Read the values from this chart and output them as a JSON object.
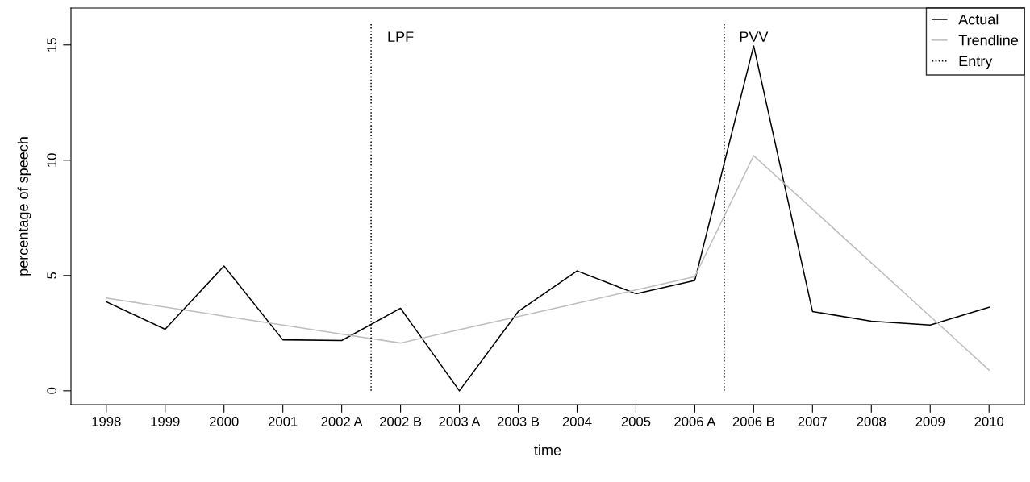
{
  "chart_data": {
    "type": "line",
    "xlabel": "time",
    "ylabel": "percentage of speech",
    "categories": [
      "1998",
      "1999",
      "2000",
      "2001",
      "2002 A",
      "2002 B",
      "2003 A",
      "2003 B",
      "2004",
      "2005",
      "2006 A",
      "2006 B",
      "2007",
      "2008",
      "2009",
      "2010"
    ],
    "series": [
      {
        "name": "Actual",
        "color": "#000000",
        "values": [
          3.86,
          2.67,
          5.41,
          2.21,
          2.18,
          3.58,
          0,
          3.44,
          5.2,
          4.21,
          4.78,
          14.96,
          3.44,
          3.02,
          2.85,
          3.62
        ]
      },
      {
        "name": "Trendline",
        "color": "#bebebe",
        "values": [
          4.02,
          3.63,
          3.24,
          2.85,
          2.46,
          2.07,
          2.65,
          3.22,
          3.8,
          4.37,
          4.95,
          10.2,
          7.88,
          5.55,
          3.23,
          0.9
        ]
      },
      {
        "name": "Entry",
        "color": "#000000",
        "line_style": "dotted",
        "values": [
          null,
          null,
          null,
          null,
          null,
          null,
          null,
          null,
          null,
          null,
          null,
          null,
          null,
          null,
          null,
          null
        ]
      }
    ],
    "annotations": [
      "LPF",
      "PVV"
    ],
    "ylim": [
      -0.6,
      16.6
    ],
    "yticks": [
      0,
      5,
      10,
      15
    ],
    "grid": false,
    "legend": "top right",
    "marker": "none",
    "line_style": "solid"
  }
}
